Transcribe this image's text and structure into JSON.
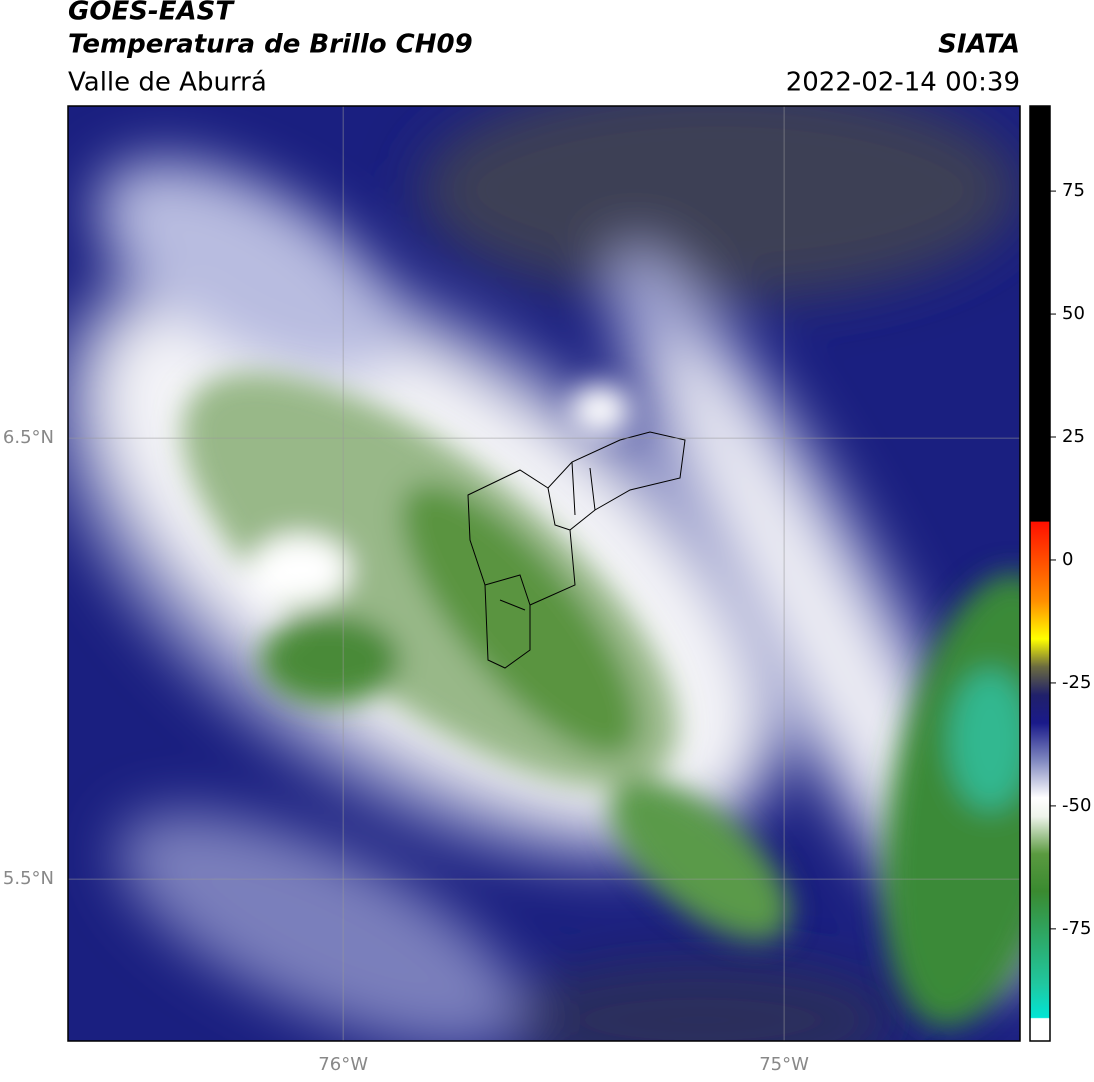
{
  "header": {
    "title": "GOES-EAST",
    "subtitle": "Temperatura de Brillo CH09",
    "region": "Valle de Aburrá",
    "source": "SIATA",
    "timestamp": "2022-02-14 00:39"
  },
  "map": {
    "xlim": [
      -76.624,
      -74.465
    ],
    "ylim": [
      5.133,
      7.253
    ],
    "xticks": [
      {
        "value": -76,
        "label": "76°W"
      },
      {
        "value": -75,
        "label": "75°W"
      }
    ],
    "yticks": [
      {
        "value": 6.5,
        "label": "6.5°N"
      },
      {
        "value": 5.5,
        "label": "5.5°N"
      }
    ]
  },
  "colorbar": {
    "lim": [
      -97.8,
      92.3
    ],
    "ticks": [
      75,
      50,
      25,
      0,
      -25,
      -50,
      -75
    ]
  }
}
